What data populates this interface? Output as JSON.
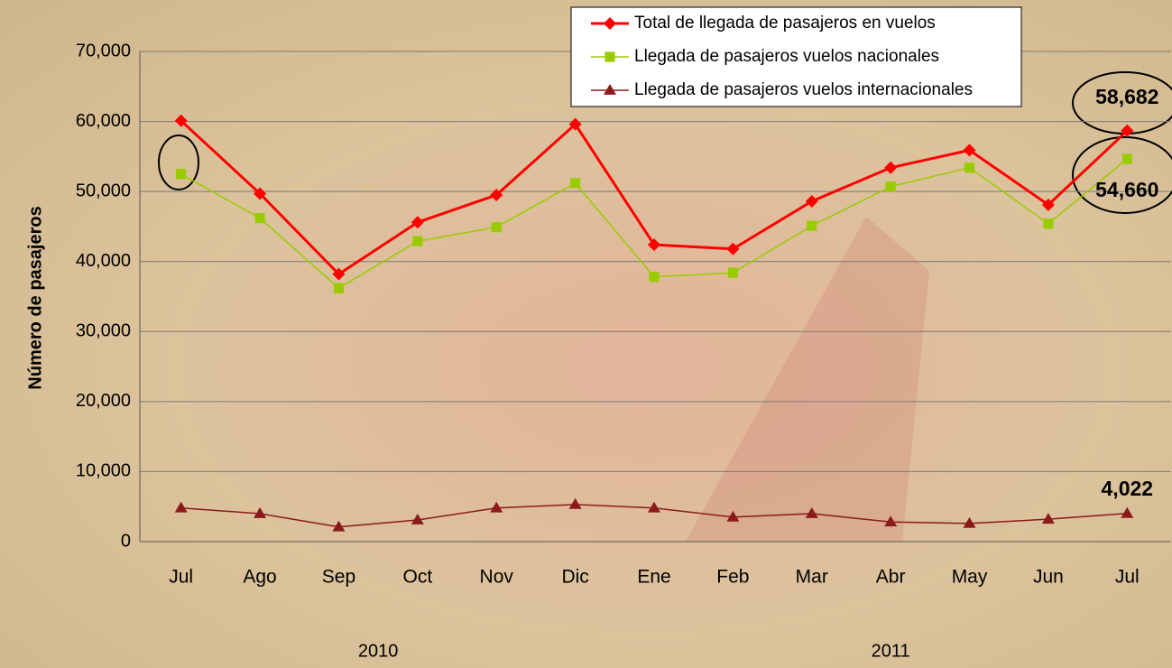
{
  "chart_data": {
    "type": "line",
    "y_label": "Número de pasajeros",
    "categories": [
      "Jul",
      "Ago",
      "Sep",
      "Oct",
      "Nov",
      "Dic",
      "Ene",
      "Feb",
      "Mar",
      "Abr",
      "May",
      "Jun",
      "Jul"
    ],
    "category_groups": [
      {
        "label": "2010",
        "count": 6
      },
      {
        "label": "2011",
        "count": 7
      }
    ],
    "series": [
      {
        "name": "Total de llegada de pasajeros en vuelos",
        "color": "#ff0000",
        "marker": "diamond",
        "values": [
          60100,
          49700,
          38200,
          45600,
          49500,
          59600,
          42400,
          41800,
          48600,
          53400,
          55900,
          48100,
          58682
        ],
        "value_labels": [
          null,
          null,
          null,
          null,
          null,
          null,
          null,
          null,
          null,
          null,
          null,
          null,
          "58,682"
        ]
      },
      {
        "name": "Llegada de pasajeros vuelos nacionales",
        "color": "#99cc00",
        "marker": "square",
        "values": [
          52500,
          46200,
          36200,
          42900,
          44900,
          51200,
          37800,
          38400,
          45100,
          50700,
          53400,
          45400,
          54660
        ],
        "value_labels": [
          null,
          null,
          null,
          null,
          null,
          null,
          null,
          null,
          null,
          null,
          null,
          null,
          "54,660"
        ]
      },
      {
        "name": "Llegada de pasajeros vuelos internacionales",
        "color": "#8b1a1a",
        "marker": "triangle",
        "values": [
          4800,
          4000,
          2100,
          3100,
          4800,
          5300,
          4800,
          3500,
          4000,
          2800,
          2600,
          3200,
          4022
        ],
        "value_labels": [
          null,
          null,
          null,
          null,
          null,
          null,
          null,
          null,
          null,
          null,
          null,
          null,
          "4,022"
        ]
      }
    ],
    "ylim": [
      0,
      70000
    ],
    "yticks": [
      0,
      {
        "value": 10000,
        "label": "10,000"
      },
      {
        "value": 20000,
        "label": "20,000"
      },
      {
        "value": 30000,
        "label": "30,000"
      },
      {
        "value": 40000,
        "label": "40,000"
      },
      {
        "value": 50000,
        "label": "50,000"
      },
      {
        "value": 60000,
        "label": "60,000"
      },
      {
        "value": 70000,
        "label": "70,000"
      }
    ],
    "grid": true,
    "legend": "top-right"
  }
}
